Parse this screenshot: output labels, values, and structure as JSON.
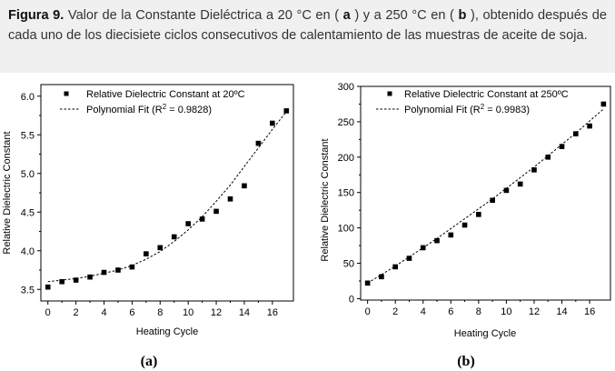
{
  "caption": {
    "figure_label": "Figura 9.",
    "text_1": " Valor de la Constante Dieléctrica a 20 °C en ( ",
    "a": "a",
    "text_2": " ) y a 250 °C en ( ",
    "b": "b",
    "text_3": " ), obtenido después de cada uno de los diecisiete ciclos consecutivos de calentamiento de las muestras de aceite de soja."
  },
  "chart_data": [
    {
      "type": "scatter",
      "panel_label": "(a)",
      "xlabel": "Heating Cycle",
      "ylabel": "Relative Dielectric Constant",
      "xlim": [
        -0.5,
        17.5
      ],
      "ylim": [
        3.35,
        6.15
      ],
      "x_ticks": [
        "0",
        "2",
        "4",
        "6",
        "8",
        "10",
        "12",
        "14",
        "16"
      ],
      "y_ticks": [
        "3.5",
        "4.0",
        "4.5",
        "5.0",
        "5.5",
        "6.0"
      ],
      "legend_position": "top-left",
      "series": [
        {
          "name": "Relative Dielectric Constant at 20ºC",
          "marker": "square",
          "x": [
            0,
            1,
            2,
            3,
            4,
            5,
            6,
            7,
            8,
            9,
            10,
            11,
            12,
            13,
            14,
            15,
            16,
            17
          ],
          "y": [
            3.53,
            3.6,
            3.62,
            3.66,
            3.72,
            3.75,
            3.79,
            3.96,
            4.04,
            4.18,
            4.35,
            4.41,
            4.51,
            4.67,
            4.84,
            5.39,
            5.65,
            5.81
          ]
        },
        {
          "name": "Polynomial Fit (R",
          "name_sup": "2",
          "name_tail": " = 0.9828)",
          "style": "dotted",
          "x": [
            0,
            1,
            2,
            3,
            4,
            5,
            6,
            7,
            8,
            9,
            10,
            11,
            12,
            13,
            14,
            15,
            16,
            17
          ],
          "y": [
            3.6,
            3.62,
            3.64,
            3.67,
            3.71,
            3.75,
            3.81,
            3.89,
            3.99,
            4.12,
            4.27,
            4.44,
            4.64,
            4.85,
            5.09,
            5.33,
            5.57,
            5.8
          ]
        }
      ]
    },
    {
      "type": "scatter",
      "panel_label": "(b)",
      "xlabel": "Heating Cycle",
      "ylabel": "Relative Dielectric Constant",
      "xlim": [
        -0.5,
        17.5
      ],
      "ylim": [
        -2,
        300
      ],
      "x_ticks": [
        "0",
        "2",
        "4",
        "6",
        "8",
        "10",
        "12",
        "14",
        "16"
      ],
      "y_ticks": [
        "0",
        "50",
        "100",
        "150",
        "200",
        "250",
        "300"
      ],
      "legend_position": "top-left",
      "series": [
        {
          "name": "Relative Dielectric Constant at 250ºC",
          "marker": "square",
          "x": [
            0,
            1,
            2,
            3,
            4,
            5,
            6,
            7,
            8,
            9,
            10,
            11,
            12,
            13,
            14,
            15,
            16,
            17
          ],
          "y": [
            22,
            31,
            45,
            57,
            72,
            82,
            90,
            104,
            119,
            139,
            153,
            162,
            182,
            200,
            215,
            233,
            244,
            275
          ]
        },
        {
          "name": "Polynomial Fit (R",
          "name_sup": "2",
          "name_tail": " = 0.9983)",
          "style": "dotted",
          "x": [
            0,
            1,
            2,
            3,
            4,
            5,
            6,
            7,
            8,
            9,
            10,
            11,
            12,
            13,
            14,
            15,
            16,
            17
          ],
          "y": [
            22,
            34,
            46,
            59,
            72,
            85,
            99,
            113,
            127,
            141,
            156,
            171,
            186,
            202,
            218,
            234,
            251,
            268
          ]
        }
      ]
    }
  ]
}
